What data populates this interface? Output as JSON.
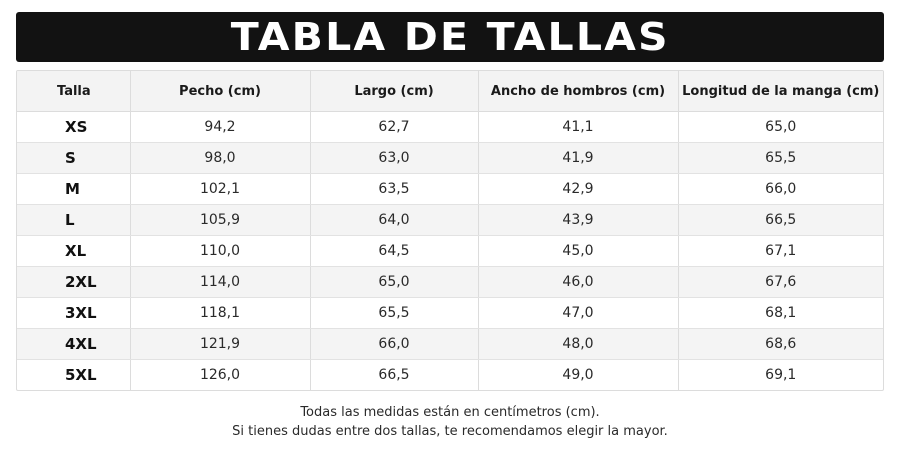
{
  "title": "TABLA DE TALLAS",
  "colors": {
    "banner_background": "#121212",
    "banner_text": "#ffffff",
    "header_background": "#f3f3f3",
    "stripe_background": "#f4f4f4",
    "border": "#dcdcdc"
  },
  "table": {
    "headers": [
      "Talla",
      "Pecho (cm)",
      "Largo (cm)",
      "Ancho de hombros (cm)",
      "Longitud de la manga (cm)"
    ],
    "rows": [
      {
        "size": "XS",
        "chest": "94,2",
        "length": "62,7",
        "shoulder": "41,1",
        "sleeve": "65,0"
      },
      {
        "size": "S",
        "chest": "98,0",
        "length": "63,0",
        "shoulder": "41,9",
        "sleeve": "65,5"
      },
      {
        "size": "M",
        "chest": "102,1",
        "length": "63,5",
        "shoulder": "42,9",
        "sleeve": "66,0"
      },
      {
        "size": "L",
        "chest": "105,9",
        "length": "64,0",
        "shoulder": "43,9",
        "sleeve": "66,5"
      },
      {
        "size": "XL",
        "chest": "110,0",
        "length": "64,5",
        "shoulder": "45,0",
        "sleeve": "67,1"
      },
      {
        "size": "2XL",
        "chest": "114,0",
        "length": "65,0",
        "shoulder": "46,0",
        "sleeve": "67,6"
      },
      {
        "size": "3XL",
        "chest": "118,1",
        "length": "65,5",
        "shoulder": "47,0",
        "sleeve": "68,1"
      },
      {
        "size": "4XL",
        "chest": "121,9",
        "length": "66,0",
        "shoulder": "48,0",
        "sleeve": "68,6"
      },
      {
        "size": "5XL",
        "chest": "126,0",
        "length": "66,5",
        "shoulder": "49,0",
        "sleeve": "69,1"
      }
    ]
  },
  "footer": {
    "line1": "Todas las medidas están en centímetros (cm).",
    "line2": "Si tienes dudas entre dos tallas, te recomendamos elegir la mayor."
  }
}
